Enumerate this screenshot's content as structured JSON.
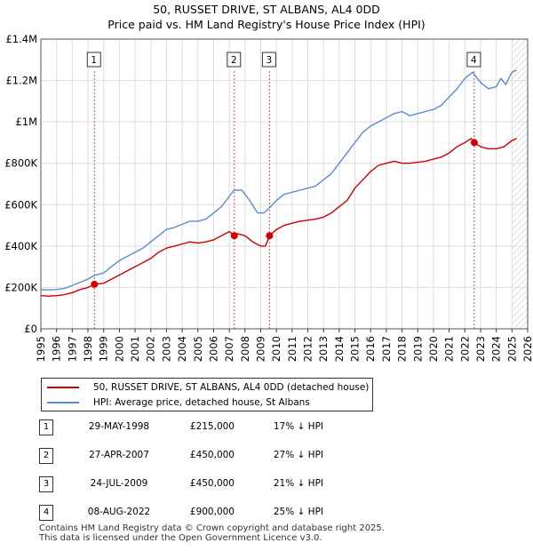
{
  "title": "50, RUSSET DRIVE, ST ALBANS, AL4 0DD",
  "subtitle": "Price paid vs. HM Land Registry's House Price Index (HPI)",
  "colors": {
    "property": "#cc0000",
    "hpi": "#5b8bd0",
    "grid": "#dddddd",
    "marker_line": "#d05050"
  },
  "legend": {
    "property": "50, RUSSET DRIVE, ST ALBANS, AL4 0DD (detached house)",
    "hpi": "HPI: Average price, detached house, St Albans"
  },
  "sales": [
    {
      "num": "1",
      "date": "29-MAY-1998",
      "price": "£215,000",
      "hpi": "17% ↓ HPI"
    },
    {
      "num": "2",
      "date": "27-APR-2007",
      "price": "£450,000",
      "hpi": "27% ↓ HPI"
    },
    {
      "num": "3",
      "date": "24-JUL-2009",
      "price": "£450,000",
      "hpi": "21% ↓ HPI"
    },
    {
      "num": "4",
      "date": "08-AUG-2022",
      "price": "£900,000",
      "hpi": "25% ↓ HPI"
    }
  ],
  "footer": {
    "line1": "Contains HM Land Registry data © Crown copyright and database right 2025.",
    "line2": "This data is licensed under the Open Government Licence v3.0."
  },
  "chart_data": {
    "type": "line",
    "title": "50, RUSSET DRIVE, ST ALBANS, AL4 0DD",
    "subtitle": "Price paid vs. HM Land Registry's House Price Index (HPI)",
    "xlim": [
      1995,
      2026
    ],
    "ylim": [
      0,
      1400000
    ],
    "x_ticks": [
      1995,
      1996,
      1997,
      1998,
      1999,
      2000,
      2001,
      2002,
      2003,
      2004,
      2005,
      2006,
      2007,
      2008,
      2009,
      2010,
      2011,
      2012,
      2013,
      2014,
      2015,
      2016,
      2017,
      2018,
      2019,
      2020,
      2021,
      2022,
      2023,
      2024,
      2025,
      2026
    ],
    "y_ticks": [
      0,
      200000,
      400000,
      600000,
      800000,
      1000000,
      1200000,
      1400000
    ],
    "y_tick_labels": [
      "£0",
      "£200K",
      "£400K",
      "£600K",
      "£800K",
      "£1M",
      "£1.2M",
      "£1.4M"
    ],
    "grid": true,
    "forecast_start": 2025.0,
    "series": [
      {
        "name": "HPI: Average price, detached house, St Albans",
        "x": [
          1995,
          1995.5,
          1996,
          1996.5,
          1997,
          1997.5,
          1998,
          1998.4,
          1999,
          1999.5,
          2000,
          2000.5,
          2001,
          2001.5,
          2002,
          2002.5,
          2003,
          2003.5,
          2004,
          2004.5,
          2005,
          2005.5,
          2006,
          2006.5,
          2007,
          2007.3,
          2007.8,
          2008.3,
          2008.8,
          2009.2,
          2009.5,
          2010,
          2010.5,
          2011,
          2011.5,
          2012,
          2012.5,
          2013,
          2013.5,
          2014,
          2014.5,
          2015,
          2015.5,
          2016,
          2016.5,
          2017,
          2017.5,
          2018,
          2018.5,
          2019,
          2019.5,
          2020,
          2020.5,
          2021,
          2021.5,
          2022,
          2022.5,
          2022.8,
          2023,
          2023.5,
          2024,
          2024.3,
          2024.6,
          2025,
          2025.3
        ],
        "values": [
          190000,
          188000,
          190000,
          195000,
          210000,
          225000,
          240000,
          258000,
          270000,
          300000,
          330000,
          350000,
          370000,
          390000,
          420000,
          450000,
          480000,
          490000,
          505000,
          520000,
          520000,
          530000,
          560000,
          590000,
          640000,
          670000,
          670000,
          620000,
          560000,
          560000,
          580000,
          620000,
          650000,
          660000,
          670000,
          680000,
          690000,
          720000,
          750000,
          800000,
          850000,
          900000,
          950000,
          980000,
          1000000,
          1020000,
          1040000,
          1050000,
          1030000,
          1040000,
          1050000,
          1060000,
          1080000,
          1120000,
          1160000,
          1210000,
          1240000,
          1210000,
          1190000,
          1160000,
          1170000,
          1210000,
          1180000,
          1240000,
          1250000
        ]
      },
      {
        "name": "50, RUSSET DRIVE, ST ALBANS, AL4 0DD (detached house)",
        "x": [
          1995,
          1995.5,
          1996,
          1996.5,
          1997,
          1997.5,
          1998,
          1998.41,
          1999,
          1999.5,
          2000,
          2000.5,
          2001,
          2001.5,
          2002,
          2002.5,
          2003,
          2003.5,
          2004,
          2004.5,
          2005,
          2005.5,
          2006,
          2006.5,
          2007,
          2007.32,
          2007.5,
          2008,
          2008.5,
          2009,
          2009.3,
          2009.56,
          2010,
          2010.5,
          2011,
          2011.5,
          2012,
          2012.5,
          2013,
          2013.5,
          2014,
          2014.5,
          2015,
          2015.5,
          2016,
          2016.5,
          2017,
          2017.5,
          2018,
          2018.5,
          2019,
          2019.5,
          2020,
          2020.5,
          2021,
          2021.5,
          2022,
          2022.4,
          2022.6,
          2023,
          2023.5,
          2024,
          2024.5,
          2025,
          2025.3
        ],
        "values": [
          160000,
          158000,
          160000,
          165000,
          175000,
          190000,
          200000,
          215000,
          220000,
          240000,
          260000,
          280000,
          300000,
          320000,
          340000,
          370000,
          390000,
          400000,
          410000,
          420000,
          415000,
          420000,
          430000,
          450000,
          470000,
          450000,
          460000,
          450000,
          420000,
          400000,
          400000,
          450000,
          480000,
          500000,
          510000,
          520000,
          525000,
          530000,
          540000,
          560000,
          590000,
          620000,
          680000,
          720000,
          760000,
          790000,
          800000,
          810000,
          800000,
          800000,
          805000,
          810000,
          820000,
          830000,
          850000,
          880000,
          900000,
          920000,
          900000,
          880000,
          870000,
          870000,
          880000,
          910000,
          920000
        ]
      }
    ],
    "sale_points": [
      {
        "label": "1",
        "x": 1998.41,
        "value": 215000
      },
      {
        "label": "2",
        "x": 2007.32,
        "value": 450000
      },
      {
        "label": "3",
        "x": 2009.56,
        "value": 450000
      },
      {
        "label": "4",
        "x": 2022.6,
        "value": 900000
      }
    ]
  }
}
